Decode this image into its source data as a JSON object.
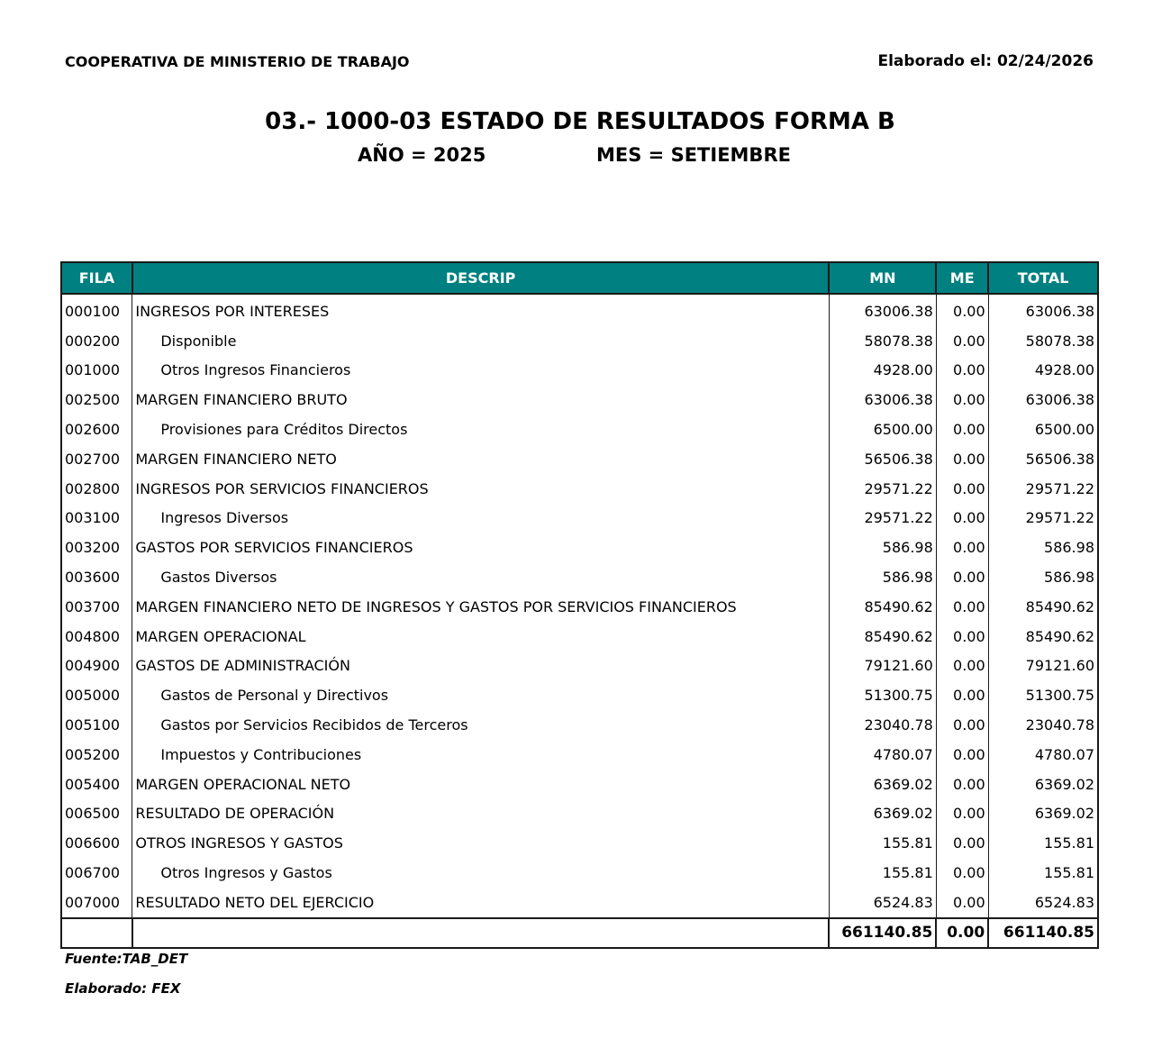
{
  "header": {
    "organization": "COOPERATIVA DE MINISTERIO DE TRABAJO",
    "date_label": "Elaborado el: 02/24/2026",
    "title": "03.- 1000-03 ESTADO DE RESULTADOS FORMA B",
    "year_label": "AÑO =  2025",
    "month_label": "MES =  SETIEMBRE"
  },
  "table": {
    "columns": [
      "FILA",
      "DESCRIP",
      "MN",
      "ME",
      "TOTAL"
    ],
    "rows": [
      {
        "fila": "000100",
        "descrip": "INGRESOS POR INTERESES",
        "mn": "63006.38",
        "me": "0.00",
        "total": "63006.38",
        "indent": false
      },
      {
        "fila": "000200",
        "descrip": "Disponible",
        "mn": "58078.38",
        "me": "0.00",
        "total": "58078.38",
        "indent": true
      },
      {
        "fila": "001000",
        "descrip": "Otros Ingresos Financieros",
        "mn": "4928.00",
        "me": "0.00",
        "total": "4928.00",
        "indent": true
      },
      {
        "fila": "002500",
        "descrip": "MARGEN FINANCIERO BRUTO",
        "mn": "63006.38",
        "me": "0.00",
        "total": "63006.38",
        "indent": false
      },
      {
        "fila": "002600",
        "descrip": "Provisiones para Créditos Directos",
        "mn": "6500.00",
        "me": "0.00",
        "total": "6500.00",
        "indent": true
      },
      {
        "fila": "002700",
        "descrip": "MARGEN FINANCIERO NETO",
        "mn": "56506.38",
        "me": "0.00",
        "total": "56506.38",
        "indent": false
      },
      {
        "fila": "002800",
        "descrip": "INGRESOS POR SERVICIOS FINANCIEROS",
        "mn": "29571.22",
        "me": "0.00",
        "total": "29571.22",
        "indent": false
      },
      {
        "fila": "003100",
        "descrip": "Ingresos Diversos",
        "mn": "29571.22",
        "me": "0.00",
        "total": "29571.22",
        "indent": true
      },
      {
        "fila": "003200",
        "descrip": "GASTOS POR SERVICIOS FINANCIEROS",
        "mn": "586.98",
        "me": "0.00",
        "total": "586.98",
        "indent": false
      },
      {
        "fila": "003600",
        "descrip": "Gastos Diversos",
        "mn": "586.98",
        "me": "0.00",
        "total": "586.98",
        "indent": true
      },
      {
        "fila": "003700",
        "descrip": "MARGEN FINANCIERO NETO DE INGRESOS Y GASTOS POR SERVICIOS FINANCIEROS",
        "mn": "85490.62",
        "me": "0.00",
        "total": "85490.62",
        "indent": false
      },
      {
        "fila": "004800",
        "descrip": "MARGEN OPERACIONAL",
        "mn": "85490.62",
        "me": "0.00",
        "total": "85490.62",
        "indent": false
      },
      {
        "fila": "004900",
        "descrip": "GASTOS DE  ADMINISTRACIÓN",
        "mn": "79121.60",
        "me": "0.00",
        "total": "79121.60",
        "indent": false
      },
      {
        "fila": "005000",
        "descrip": "Gastos de Personal y Directivos",
        "mn": "51300.75",
        "me": "0.00",
        "total": "51300.75",
        "indent": true
      },
      {
        "fila": "005100",
        "descrip": "Gastos por Servicios Recibidos de Terceros",
        "mn": "23040.78",
        "me": "0.00",
        "total": "23040.78",
        "indent": true
      },
      {
        "fila": "005200",
        "descrip": "Impuestos y Contribuciones",
        "mn": "4780.07",
        "me": "0.00",
        "total": "4780.07",
        "indent": true
      },
      {
        "fila": "005400",
        "descrip": "MARGEN OPERACIONAL NETO",
        "mn": "6369.02",
        "me": "0.00",
        "total": "6369.02",
        "indent": false
      },
      {
        "fila": "006500",
        "descrip": "RESULTADO DE OPERACIÓN",
        "mn": "6369.02",
        "me": "0.00",
        "total": "6369.02",
        "indent": false
      },
      {
        "fila": "006600",
        "descrip": "OTROS INGRESOS Y GASTOS",
        "mn": "155.81",
        "me": "0.00",
        "total": "155.81",
        "indent": false
      },
      {
        "fila": "006700",
        "descrip": "Otros Ingresos y Gastos",
        "mn": "155.81",
        "me": "0.00",
        "total": "155.81",
        "indent": true
      },
      {
        "fila": "007000",
        "descrip": "RESULTADO NETO DEL EJERCICIO",
        "mn": "6524.83",
        "me": "0.00",
        "total": "6524.83",
        "indent": false
      }
    ],
    "totals": {
      "mn": "661140.85",
      "me": "0.00",
      "total": "661140.85"
    },
    "header_color": "#008080"
  },
  "footer": {
    "source": "Fuente:TAB_DET",
    "prepared": "Elaborado: FEX"
  }
}
